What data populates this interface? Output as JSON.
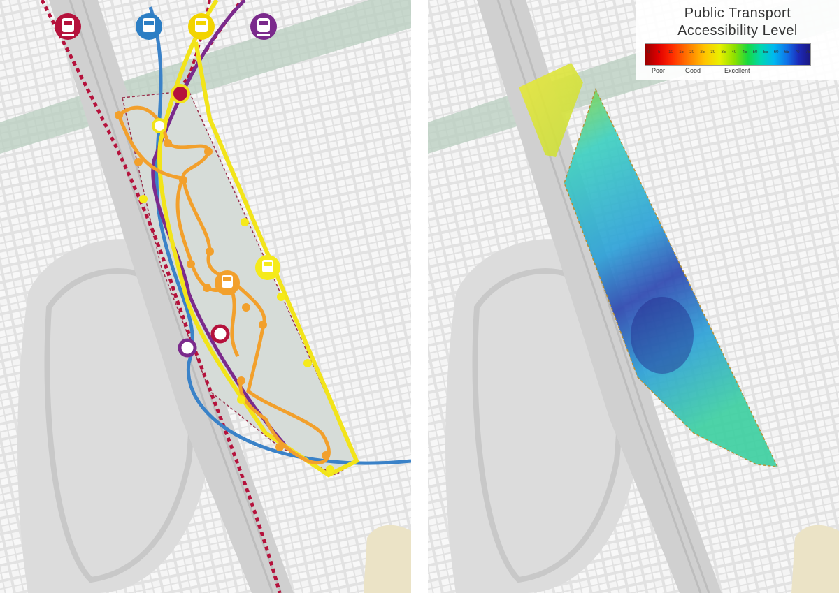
{
  "left_map": {
    "mode_icons": [
      {
        "icon": "tram-icon",
        "color": "#b5123c"
      },
      {
        "icon": "bus-icon",
        "color": "#2c7ec4"
      },
      {
        "icon": "bus-icon",
        "color": "#f2d400"
      },
      {
        "icon": "tram-icon",
        "color": "#7b2a8c"
      }
    ],
    "route_colors": {
      "rail": "#b5123c",
      "blue_line": "#3a82c8",
      "yellow_line": "#f2e41a",
      "purple_line": "#7b2a8c",
      "internal_bus": "#f2a02c"
    }
  },
  "right_map": {
    "legend": {
      "title_line1": "Public Transport",
      "title_line2": "Accessibility Level",
      "tick_values": [
        "0",
        "5",
        "10",
        "15",
        "20",
        "25",
        "30",
        "35",
        "40",
        "45",
        "50",
        "55",
        "60",
        "65",
        "70",
        "75"
      ],
      "labels": {
        "poor": "Poor",
        "good": "Good",
        "excellent": "Excellent"
      }
    },
    "heat_colors": [
      "#e9e83a",
      "#8fd83a",
      "#3bd0c0",
      "#2aa0d8",
      "#2a45b0"
    ]
  }
}
